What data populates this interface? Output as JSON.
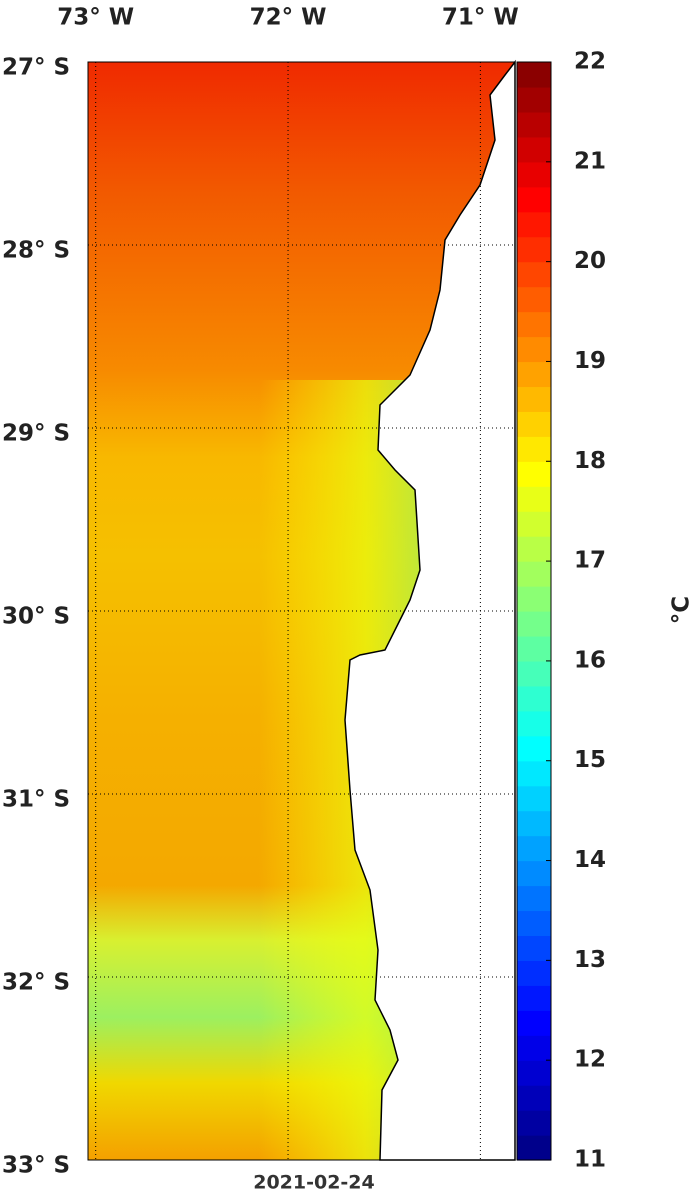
{
  "map": {
    "xlim": [
      -73.04,
      -70.82
    ],
    "ylim": [
      -33,
      -27
    ],
    "xticks": [
      {
        "value": -73,
        "label": "73° W"
      },
      {
        "value": -72,
        "label": "72° W"
      },
      {
        "value": -71,
        "label": "71° W"
      }
    ],
    "yticks": [
      {
        "value": -27,
        "label": "27° S"
      },
      {
        "value": -28,
        "label": "28° S"
      },
      {
        "value": -29,
        "label": "29° S"
      },
      {
        "value": -30,
        "label": "30° S"
      },
      {
        "value": -31,
        "label": "31° S"
      },
      {
        "value": -32,
        "label": "32° S"
      },
      {
        "value": -33,
        "label": "33° S"
      }
    ],
    "date": "2021-02-24",
    "colorbar": {
      "lim": [
        11,
        22
      ],
      "ticks": [
        11,
        12,
        13,
        14,
        15,
        16,
        17,
        18,
        19,
        20,
        21,
        22
      ],
      "label": "°C"
    }
  }
}
